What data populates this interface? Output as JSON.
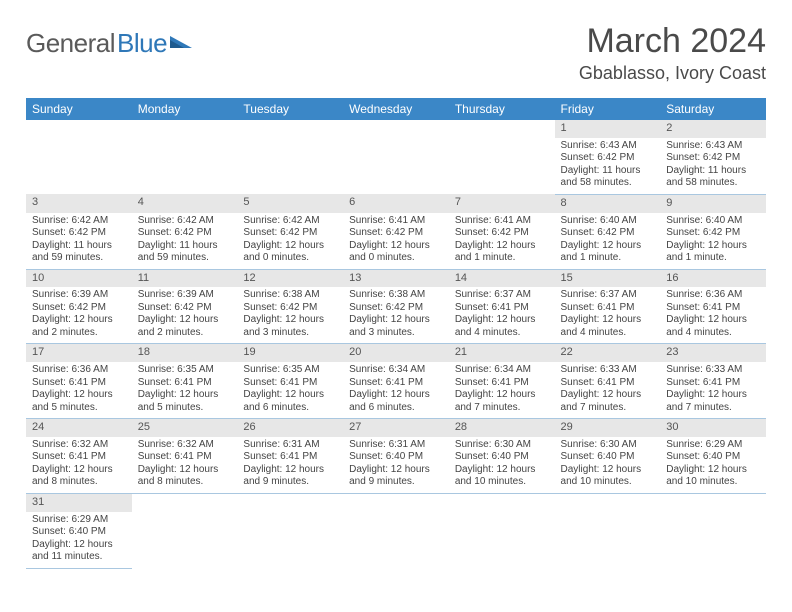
{
  "logo": {
    "part1": "General",
    "part2": "Blue"
  },
  "title": "March 2024",
  "location": "Gbablasso, Ivory Coast",
  "colors": {
    "header_bg": "#3b87c7",
    "header_text": "#ffffff",
    "daynum_bg": "#e7e7e7",
    "cell_border": "#a9c7e0",
    "logo_gray": "#5a5a5a",
    "logo_blue": "#2f78b8"
  },
  "day_headers": [
    "Sunday",
    "Monday",
    "Tuesday",
    "Wednesday",
    "Thursday",
    "Friday",
    "Saturday"
  ],
  "weeks": [
    {
      "nums": [
        "",
        "",
        "",
        "",
        "",
        "1",
        "2"
      ],
      "cells": [
        null,
        null,
        null,
        null,
        null,
        {
          "sunrise": "Sunrise: 6:43 AM",
          "sunset": "Sunset: 6:42 PM",
          "daylight": "Daylight: 11 hours and 58 minutes."
        },
        {
          "sunrise": "Sunrise: 6:43 AM",
          "sunset": "Sunset: 6:42 PM",
          "daylight": "Daylight: 11 hours and 58 minutes."
        }
      ]
    },
    {
      "nums": [
        "3",
        "4",
        "5",
        "6",
        "7",
        "8",
        "9"
      ],
      "cells": [
        {
          "sunrise": "Sunrise: 6:42 AM",
          "sunset": "Sunset: 6:42 PM",
          "daylight": "Daylight: 11 hours and 59 minutes."
        },
        {
          "sunrise": "Sunrise: 6:42 AM",
          "sunset": "Sunset: 6:42 PM",
          "daylight": "Daylight: 11 hours and 59 minutes."
        },
        {
          "sunrise": "Sunrise: 6:42 AM",
          "sunset": "Sunset: 6:42 PM",
          "daylight": "Daylight: 12 hours and 0 minutes."
        },
        {
          "sunrise": "Sunrise: 6:41 AM",
          "sunset": "Sunset: 6:42 PM",
          "daylight": "Daylight: 12 hours and 0 minutes."
        },
        {
          "sunrise": "Sunrise: 6:41 AM",
          "sunset": "Sunset: 6:42 PM",
          "daylight": "Daylight: 12 hours and 1 minute."
        },
        {
          "sunrise": "Sunrise: 6:40 AM",
          "sunset": "Sunset: 6:42 PM",
          "daylight": "Daylight: 12 hours and 1 minute."
        },
        {
          "sunrise": "Sunrise: 6:40 AM",
          "sunset": "Sunset: 6:42 PM",
          "daylight": "Daylight: 12 hours and 1 minute."
        }
      ]
    },
    {
      "nums": [
        "10",
        "11",
        "12",
        "13",
        "14",
        "15",
        "16"
      ],
      "cells": [
        {
          "sunrise": "Sunrise: 6:39 AM",
          "sunset": "Sunset: 6:42 PM",
          "daylight": "Daylight: 12 hours and 2 minutes."
        },
        {
          "sunrise": "Sunrise: 6:39 AM",
          "sunset": "Sunset: 6:42 PM",
          "daylight": "Daylight: 12 hours and 2 minutes."
        },
        {
          "sunrise": "Sunrise: 6:38 AM",
          "sunset": "Sunset: 6:42 PM",
          "daylight": "Daylight: 12 hours and 3 minutes."
        },
        {
          "sunrise": "Sunrise: 6:38 AM",
          "sunset": "Sunset: 6:42 PM",
          "daylight": "Daylight: 12 hours and 3 minutes."
        },
        {
          "sunrise": "Sunrise: 6:37 AM",
          "sunset": "Sunset: 6:41 PM",
          "daylight": "Daylight: 12 hours and 4 minutes."
        },
        {
          "sunrise": "Sunrise: 6:37 AM",
          "sunset": "Sunset: 6:41 PM",
          "daylight": "Daylight: 12 hours and 4 minutes."
        },
        {
          "sunrise": "Sunrise: 6:36 AM",
          "sunset": "Sunset: 6:41 PM",
          "daylight": "Daylight: 12 hours and 4 minutes."
        }
      ]
    },
    {
      "nums": [
        "17",
        "18",
        "19",
        "20",
        "21",
        "22",
        "23"
      ],
      "cells": [
        {
          "sunrise": "Sunrise: 6:36 AM",
          "sunset": "Sunset: 6:41 PM",
          "daylight": "Daylight: 12 hours and 5 minutes."
        },
        {
          "sunrise": "Sunrise: 6:35 AM",
          "sunset": "Sunset: 6:41 PM",
          "daylight": "Daylight: 12 hours and 5 minutes."
        },
        {
          "sunrise": "Sunrise: 6:35 AM",
          "sunset": "Sunset: 6:41 PM",
          "daylight": "Daylight: 12 hours and 6 minutes."
        },
        {
          "sunrise": "Sunrise: 6:34 AM",
          "sunset": "Sunset: 6:41 PM",
          "daylight": "Daylight: 12 hours and 6 minutes."
        },
        {
          "sunrise": "Sunrise: 6:34 AM",
          "sunset": "Sunset: 6:41 PM",
          "daylight": "Daylight: 12 hours and 7 minutes."
        },
        {
          "sunrise": "Sunrise: 6:33 AM",
          "sunset": "Sunset: 6:41 PM",
          "daylight": "Daylight: 12 hours and 7 minutes."
        },
        {
          "sunrise": "Sunrise: 6:33 AM",
          "sunset": "Sunset: 6:41 PM",
          "daylight": "Daylight: 12 hours and 7 minutes."
        }
      ]
    },
    {
      "nums": [
        "24",
        "25",
        "26",
        "27",
        "28",
        "29",
        "30"
      ],
      "cells": [
        {
          "sunrise": "Sunrise: 6:32 AM",
          "sunset": "Sunset: 6:41 PM",
          "daylight": "Daylight: 12 hours and 8 minutes."
        },
        {
          "sunrise": "Sunrise: 6:32 AM",
          "sunset": "Sunset: 6:41 PM",
          "daylight": "Daylight: 12 hours and 8 minutes."
        },
        {
          "sunrise": "Sunrise: 6:31 AM",
          "sunset": "Sunset: 6:41 PM",
          "daylight": "Daylight: 12 hours and 9 minutes."
        },
        {
          "sunrise": "Sunrise: 6:31 AM",
          "sunset": "Sunset: 6:40 PM",
          "daylight": "Daylight: 12 hours and 9 minutes."
        },
        {
          "sunrise": "Sunrise: 6:30 AM",
          "sunset": "Sunset: 6:40 PM",
          "daylight": "Daylight: 12 hours and 10 minutes."
        },
        {
          "sunrise": "Sunrise: 6:30 AM",
          "sunset": "Sunset: 6:40 PM",
          "daylight": "Daylight: 12 hours and 10 minutes."
        },
        {
          "sunrise": "Sunrise: 6:29 AM",
          "sunset": "Sunset: 6:40 PM",
          "daylight": "Daylight: 12 hours and 10 minutes."
        }
      ]
    },
    {
      "nums": [
        "31",
        "",
        "",
        "",
        "",
        "",
        ""
      ],
      "cells": [
        {
          "sunrise": "Sunrise: 6:29 AM",
          "sunset": "Sunset: 6:40 PM",
          "daylight": "Daylight: 12 hours and 11 minutes."
        },
        null,
        null,
        null,
        null,
        null,
        null
      ]
    }
  ]
}
